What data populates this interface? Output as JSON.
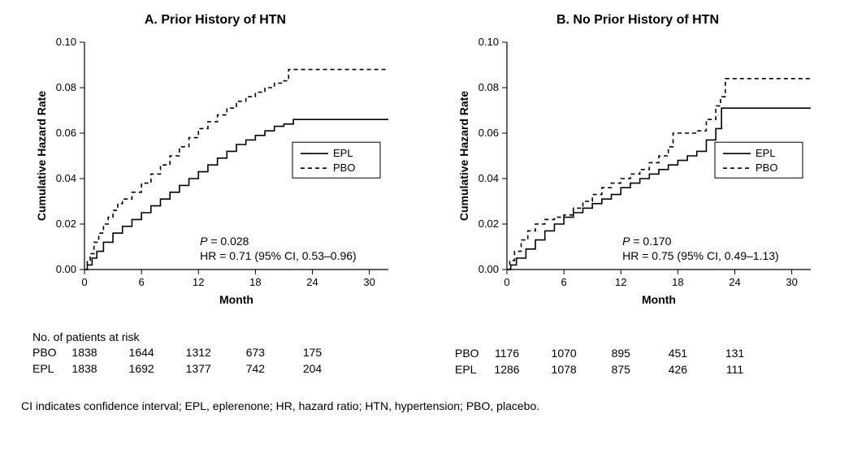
{
  "footnote": "CI indicates confidence interval; EPL, eplerenone; HR, hazard ratio; HTN, hypertension; PBO, placebo.",
  "risk_header": "No. of patients at risk",
  "shared": {
    "type": "step-line",
    "ylabel": "Cumulative Hazard Rate",
    "xlabel": "Month",
    "label_fontsize": 14,
    "title_fontsize": 16,
    "xlim": [
      0,
      32
    ],
    "ylim": [
      0,
      0.1
    ],
    "xticks": [
      0,
      6,
      12,
      18,
      24,
      30
    ],
    "yticks": [
      0.0,
      0.02,
      0.04,
      0.06,
      0.08,
      0.1
    ],
    "ytick_labels": [
      "0.00",
      "0.02",
      "0.04",
      "0.06",
      "0.08",
      "0.10"
    ],
    "line_colors": {
      "EPL": "#000000",
      "PBO": "#000000"
    },
    "line_styles": {
      "EPL": "solid",
      "PBO": "dashed"
    },
    "line_width": 1.6,
    "axis_color": "#000000",
    "background_color": "#ffffff",
    "tick_fontsize": 13,
    "legend_labels": {
      "EPL": "EPL",
      "PBO": "PBO"
    }
  },
  "panels": {
    "A": {
      "title": "A. Prior History of HTN",
      "stats_p_label": "P",
      "stats_p_value": "= 0.028",
      "stats_hr": "HR = 0.71 (95% CI, 0.53–0.96)",
      "series": {
        "PBO": [
          [
            0,
            0.0
          ],
          [
            0.3,
            0.004
          ],
          [
            0.6,
            0.007
          ],
          [
            1,
            0.012
          ],
          [
            1.5,
            0.016
          ],
          [
            2,
            0.02
          ],
          [
            2.5,
            0.023
          ],
          [
            3,
            0.026
          ],
          [
            3.5,
            0.029
          ],
          [
            4,
            0.031
          ],
          [
            5,
            0.034
          ],
          [
            6,
            0.038
          ],
          [
            7,
            0.042
          ],
          [
            8,
            0.046
          ],
          [
            9,
            0.05
          ],
          [
            10,
            0.054
          ],
          [
            11,
            0.058
          ],
          [
            12,
            0.062
          ],
          [
            13,
            0.065
          ],
          [
            14,
            0.068
          ],
          [
            15,
            0.071
          ],
          [
            16,
            0.074
          ],
          [
            17,
            0.076
          ],
          [
            18,
            0.078
          ],
          [
            19,
            0.08
          ],
          [
            20,
            0.082
          ],
          [
            21,
            0.083
          ],
          [
            21.5,
            0.088
          ],
          [
            22,
            0.088
          ],
          [
            24,
            0.088
          ],
          [
            30,
            0.088
          ],
          [
            32,
            0.088
          ]
        ],
        "EPL": [
          [
            0,
            0.0
          ],
          [
            0.3,
            0.002
          ],
          [
            0.8,
            0.005
          ],
          [
            1.3,
            0.008
          ],
          [
            2,
            0.012
          ],
          [
            3,
            0.016
          ],
          [
            4,
            0.019
          ],
          [
            5,
            0.022
          ],
          [
            6,
            0.025
          ],
          [
            7,
            0.028
          ],
          [
            8,
            0.031
          ],
          [
            9,
            0.034
          ],
          [
            10,
            0.037
          ],
          [
            11,
            0.04
          ],
          [
            12,
            0.043
          ],
          [
            13,
            0.046
          ],
          [
            14,
            0.049
          ],
          [
            15,
            0.052
          ],
          [
            16,
            0.055
          ],
          [
            17,
            0.057
          ],
          [
            18,
            0.059
          ],
          [
            19,
            0.061
          ],
          [
            20,
            0.063
          ],
          [
            21,
            0.064
          ],
          [
            22,
            0.066
          ],
          [
            23,
            0.066
          ],
          [
            24,
            0.066
          ],
          [
            30,
            0.066
          ],
          [
            32,
            0.066
          ]
        ]
      },
      "risk": {
        "PBO": [
          1838,
          1644,
          1312,
          673,
          175
        ],
        "EPL": [
          1838,
          1692,
          1377,
          742,
          204
        ]
      }
    },
    "B": {
      "title": "B. No Prior History of HTN",
      "stats_p_label": "P",
      "stats_p_value": "= 0.170",
      "stats_hr": "HR = 0.75 (95% CI, 0.49–1.13)",
      "series": {
        "PBO": [
          [
            0,
            0.0
          ],
          [
            0.3,
            0.004
          ],
          [
            0.8,
            0.008
          ],
          [
            1.5,
            0.013
          ],
          [
            2.2,
            0.017
          ],
          [
            3,
            0.02
          ],
          [
            4,
            0.022
          ],
          [
            5,
            0.023
          ],
          [
            6,
            0.024
          ],
          [
            7,
            0.027
          ],
          [
            8,
            0.03
          ],
          [
            9,
            0.033
          ],
          [
            10,
            0.036
          ],
          [
            11,
            0.038
          ],
          [
            12,
            0.04
          ],
          [
            13,
            0.042
          ],
          [
            14,
            0.044
          ],
          [
            15,
            0.047
          ],
          [
            16,
            0.05
          ],
          [
            17,
            0.054
          ],
          [
            17.5,
            0.06
          ],
          [
            18,
            0.06
          ],
          [
            19,
            0.06
          ],
          [
            20,
            0.061
          ],
          [
            21,
            0.066
          ],
          [
            22,
            0.072
          ],
          [
            22.5,
            0.076
          ],
          [
            23,
            0.084
          ],
          [
            24,
            0.084
          ],
          [
            30,
            0.084
          ],
          [
            32,
            0.084
          ]
        ],
        "EPL": [
          [
            0,
            0.0
          ],
          [
            0.4,
            0.002
          ],
          [
            1,
            0.005
          ],
          [
            2,
            0.009
          ],
          [
            3,
            0.013
          ],
          [
            4,
            0.017
          ],
          [
            5,
            0.02
          ],
          [
            6,
            0.023
          ],
          [
            7,
            0.025
          ],
          [
            8,
            0.027
          ],
          [
            9,
            0.029
          ],
          [
            10,
            0.031
          ],
          [
            11,
            0.033
          ],
          [
            12,
            0.036
          ],
          [
            13,
            0.038
          ],
          [
            14,
            0.04
          ],
          [
            15,
            0.042
          ],
          [
            16,
            0.044
          ],
          [
            17,
            0.046
          ],
          [
            18,
            0.048
          ],
          [
            19,
            0.05
          ],
          [
            20,
            0.052
          ],
          [
            21,
            0.057
          ],
          [
            22,
            0.062
          ],
          [
            22.6,
            0.071
          ],
          [
            23,
            0.071
          ],
          [
            24,
            0.071
          ],
          [
            30,
            0.071
          ],
          [
            32,
            0.071
          ]
        ]
      },
      "risk": {
        "PBO": [
          1176,
          1070,
          895,
          451,
          131
        ],
        "EPL": [
          1286,
          1078,
          875,
          426,
          111
        ]
      }
    }
  },
  "risk_xticks": [
    0,
    6,
    12,
    18,
    24
  ]
}
